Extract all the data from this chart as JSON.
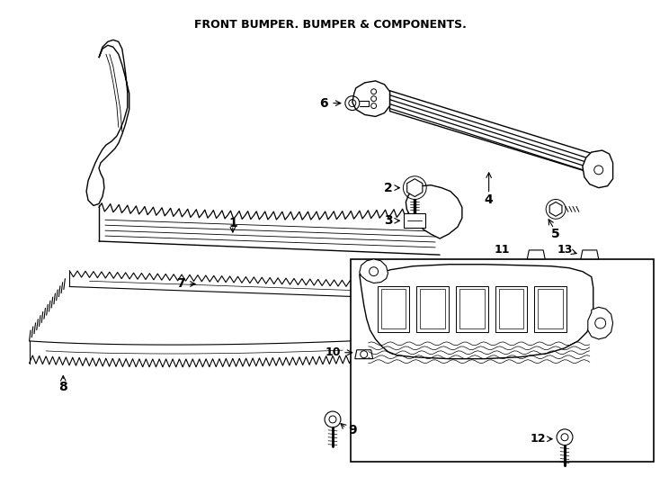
{
  "title": "FRONT BUMPER. BUMPER & COMPONENTS.",
  "bg": "#ffffff",
  "lc": "#000000",
  "figsize": [
    7.34,
    5.4
  ],
  "dpi": 100
}
